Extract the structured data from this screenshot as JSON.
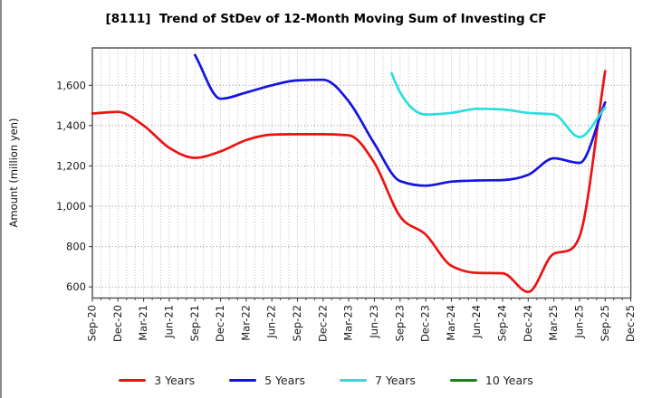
{
  "title": "[8111]  Trend of StDev of 12-Month Moving Sum of Investing CF",
  "ylabel": "Amount (million yen)",
  "chart_data": {
    "type": "line",
    "x_categories": [
      "Sep-20",
      "Dec-20",
      "Mar-21",
      "Jun-21",
      "Sep-21",
      "Dec-21",
      "Mar-22",
      "Jun-22",
      "Sep-22",
      "Dec-22",
      "Mar-23",
      "Jun-23",
      "Sep-23",
      "Dec-23",
      "Mar-24",
      "Jun-24",
      "Sep-24",
      "Dec-24",
      "Mar-25",
      "Jun-25",
      "Sep-25",
      "Dec-25"
    ],
    "x_note": "points are [quarter_index, value]; quarter_index 0 = Sep-20, data plotted monthly-smooth",
    "ylim": [
      545,
      1785
    ],
    "yticks": [
      {
        "value": 600,
        "label": "600"
      },
      {
        "value": 800,
        "label": "800"
      },
      {
        "value": 1000,
        "label": "1,000"
      },
      {
        "value": 1200,
        "label": "1,200"
      },
      {
        "value": 1400,
        "label": "1,400"
      },
      {
        "value": 1600,
        "label": "1,600"
      }
    ],
    "grid": {
      "horizontal": "dotted at each ytick",
      "vertical": "dotted monthly",
      "frame": true
    },
    "legend_position": "bottom center",
    "series": [
      {
        "name": "3 Years",
        "color": "#ed1212",
        "points": [
          [
            0,
            1460
          ],
          [
            1,
            1468
          ],
          [
            2,
            1400
          ],
          [
            3,
            1290
          ],
          [
            4,
            1240
          ],
          [
            5,
            1272
          ],
          [
            6,
            1328
          ],
          [
            7,
            1355
          ],
          [
            8,
            1357
          ],
          [
            9,
            1357
          ],
          [
            10,
            1352
          ],
          [
            11,
            1215
          ],
          [
            12,
            950
          ],
          [
            13,
            860
          ],
          [
            14,
            705
          ],
          [
            15,
            670
          ],
          [
            16,
            668
          ],
          [
            17,
            575
          ],
          [
            18,
            765
          ],
          [
            18.6,
            782
          ],
          [
            19,
            850
          ],
          [
            20,
            1670
          ]
        ]
      },
      {
        "name": "5 Years",
        "color": "#1414e0",
        "points": [
          [
            4,
            1750
          ],
          [
            5,
            1533
          ],
          [
            6,
            1564
          ],
          [
            7,
            1600
          ],
          [
            8,
            1624
          ],
          [
            9,
            1627
          ],
          [
            10,
            1520
          ],
          [
            11,
            1310
          ],
          [
            12,
            1125
          ],
          [
            13,
            1102
          ],
          [
            14,
            1122
          ],
          [
            15,
            1128
          ],
          [
            16,
            1130
          ],
          [
            17,
            1156
          ],
          [
            18,
            1238
          ],
          [
            19,
            1215
          ],
          [
            20,
            1515
          ]
        ]
      },
      {
        "name": "7 Years",
        "color": "#2bdede",
        "points": [
          [
            11.67,
            1660
          ],
          [
            12,
            1565
          ],
          [
            13,
            1455
          ],
          [
            14,
            1463
          ],
          [
            15,
            1483
          ],
          [
            16,
            1480
          ],
          [
            17,
            1463
          ],
          [
            18,
            1455
          ],
          [
            19,
            1343
          ],
          [
            20,
            1490
          ]
        ]
      },
      {
        "name": "10 Years",
        "color": "#1e821e",
        "points": []
      }
    ]
  }
}
